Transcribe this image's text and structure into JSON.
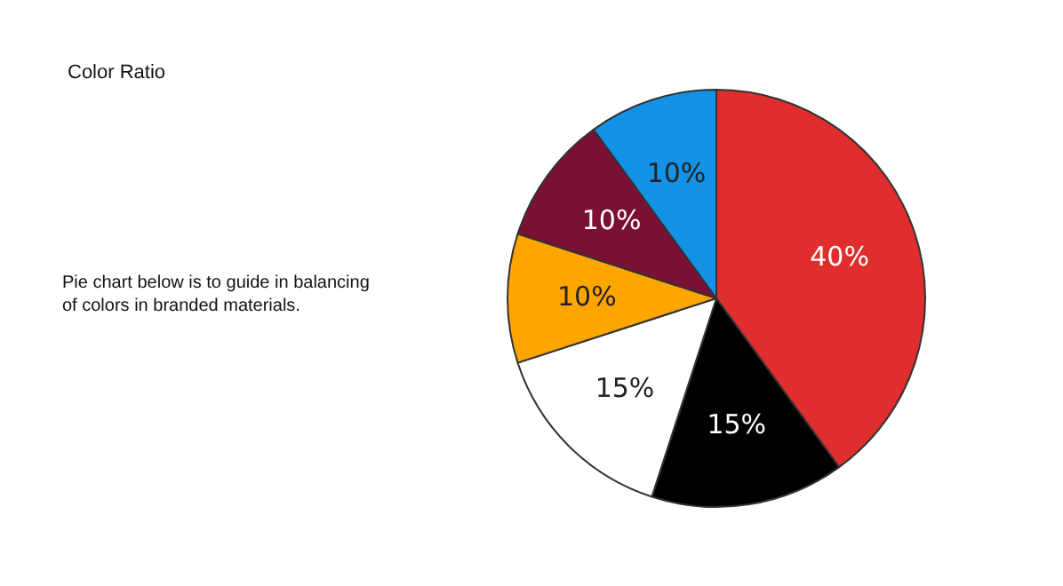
{
  "chart_data": {
    "type": "pie",
    "title": "Color Ratio",
    "annotations": [
      "Pie chart below is to guide in balancing of colors in branded materials."
    ],
    "categories": [
      null,
      null,
      null,
      null,
      null,
      null
    ],
    "values": [
      40,
      15,
      15,
      10,
      10,
      10
    ],
    "value_labels": [
      "40%",
      "15%",
      "15%",
      "10%",
      "10%",
      "10%"
    ],
    "colors": [
      "#e02d2d",
      "#000000",
      "#ffffff",
      "#ffa500",
      "#7a1135",
      "#1492e6"
    ],
    "legend": false
  }
}
